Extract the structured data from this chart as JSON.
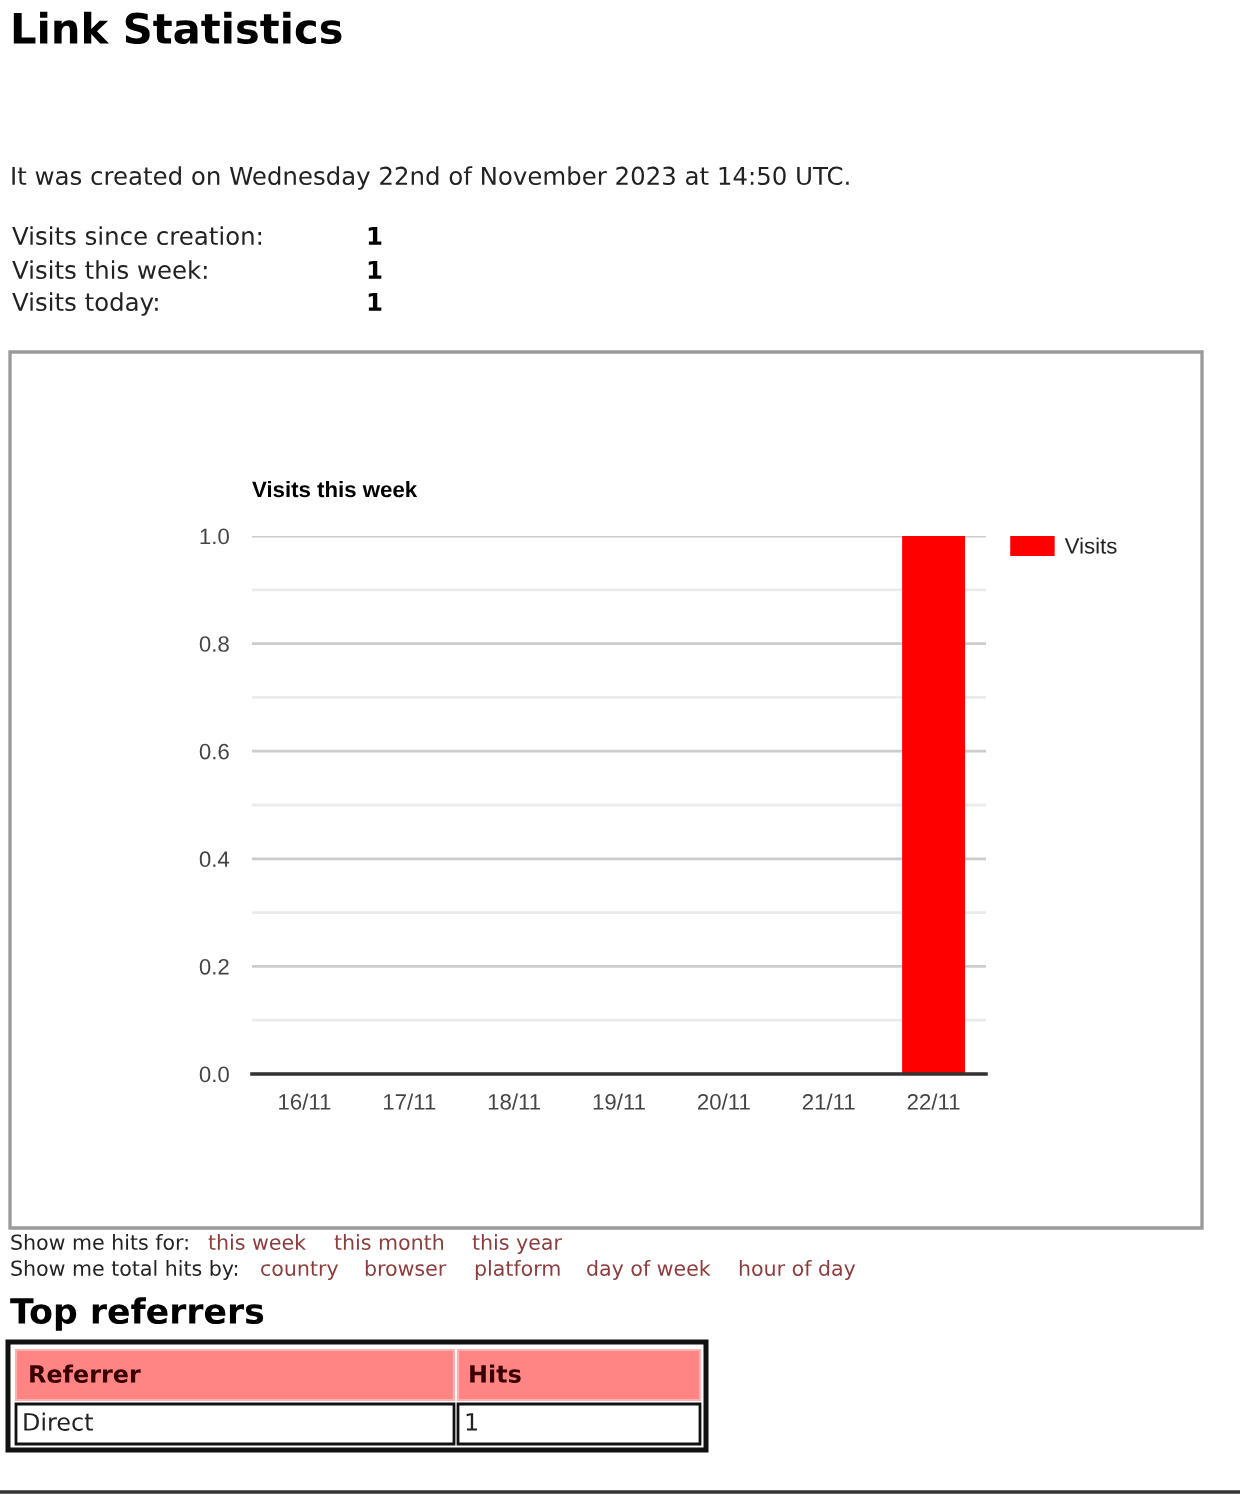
{
  "chart_data": {
    "type": "bar",
    "title": "Visits this week",
    "categories": [
      "16/11",
      "17/11",
      "18/11",
      "19/11",
      "20/11",
      "21/11",
      "22/11"
    ],
    "series": [
      {
        "name": "Visits",
        "color": "#ff0000",
        "values": [
          0,
          0,
          0,
          0,
          0,
          0,
          1
        ]
      }
    ],
    "ylim": [
      0,
      1
    ],
    "yticks": [
      {
        "value": 0,
        "label": "0.0"
      },
      {
        "value": 0.1,
        "label": null
      },
      {
        "value": 0.2,
        "label": "0.2"
      },
      {
        "value": 0.3,
        "label": null
      },
      {
        "value": 0.4,
        "label": "0.4"
      },
      {
        "value": 0.5,
        "label": null
      },
      {
        "value": 0.6,
        "label": "0.6"
      },
      {
        "value": 0.7,
        "label": null
      },
      {
        "value": 0.8,
        "label": "0.8"
      },
      {
        "value": 0.9,
        "label": null
      },
      {
        "value": 1,
        "label": "1.0"
      }
    ],
    "grid": "y",
    "legend": "top right",
    "annotations": [
      "Link Statistics",
      "It was created on Wednesday 22nd of November 2023 at 14:50 UTC.",
      "Visits since creation:",
      "1",
      "Visits this week:",
      "1",
      "Visits today:",
      "1",
      "Show me hits for:",
      "this week",
      "this month",
      "this year",
      "Show me total hits by:",
      "country",
      "browser",
      "platform",
      "day of week",
      "hour of day",
      "Top referrers",
      "Referrer",
      "Hits",
      "Direct",
      "1"
    ]
  }
}
